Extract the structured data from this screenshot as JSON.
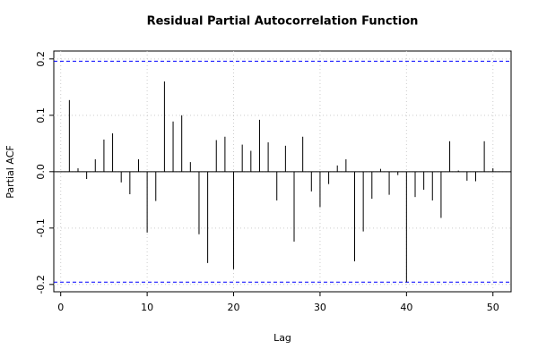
{
  "chart_data": {
    "type": "bar",
    "title": "Residual Partial Autocorrelation Function",
    "x_label": "Lag",
    "y_label": "Partial ACF",
    "x": [
      1,
      2,
      3,
      4,
      5,
      6,
      7,
      8,
      9,
      10,
      11,
      12,
      13,
      14,
      15,
      16,
      17,
      18,
      19,
      20,
      21,
      22,
      23,
      24,
      25,
      26,
      27,
      28,
      29,
      30,
      31,
      32,
      33,
      34,
      35,
      36,
      37,
      38,
      39,
      40,
      41,
      42,
      43,
      44,
      45,
      46,
      47,
      48,
      49,
      50
    ],
    "values": [
      0.127,
      0.006,
      -0.013,
      0.022,
      0.057,
      0.068,
      -0.019,
      -0.04,
      0.022,
      -0.108,
      -0.052,
      0.16,
      0.089,
      0.1,
      0.017,
      -0.111,
      -0.162,
      0.056,
      0.062,
      -0.173,
      0.048,
      0.037,
      0.092,
      0.052,
      -0.051,
      0.046,
      -0.124,
      0.062,
      -0.035,
      -0.063,
      -0.022,
      0.011,
      0.022,
      -0.159,
      -0.106,
      -0.048,
      0.005,
      -0.041,
      -0.006,
      -0.196,
      -0.045,
      -0.032,
      -0.051,
      -0.082,
      0.054,
      0.002,
      -0.016,
      -0.017,
      0.054,
      0.006
    ],
    "color": "#000000",
    "bounds": [
      0.196,
      -0.196
    ],
    "bounds_color": "#0000ff",
    "xlim": [
      -0.8,
      52.1
    ],
    "ylim": [
      -0.213,
      0.214
    ],
    "xticks": [
      0,
      10,
      20,
      30,
      40,
      50
    ],
    "yticks": [
      -0.2,
      -0.1,
      {
        "value": 0,
        "label": "0.0"
      },
      0.1,
      0.2
    ],
    "grid": true
  }
}
